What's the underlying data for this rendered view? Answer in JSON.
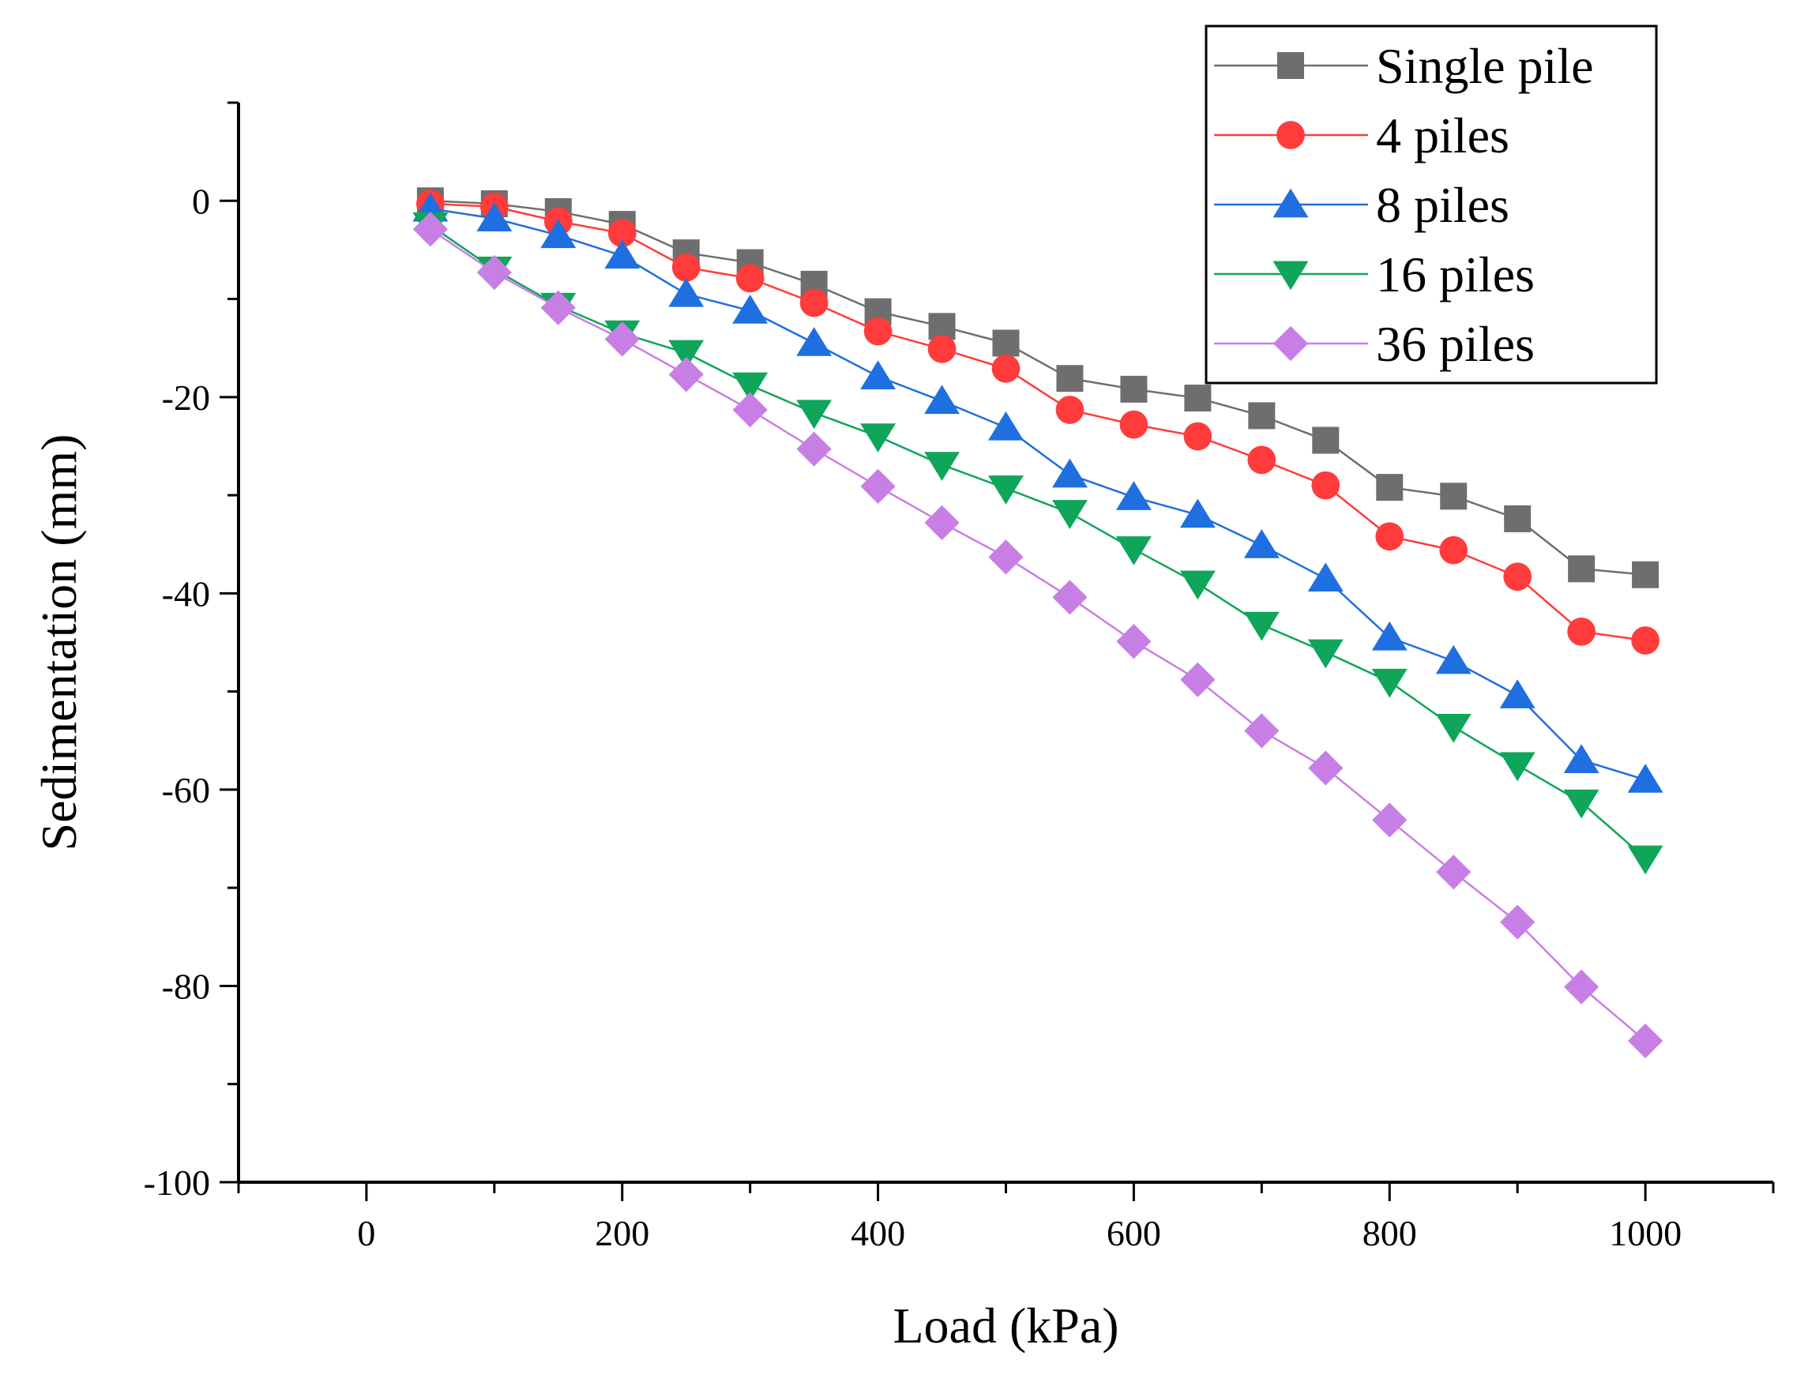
{
  "chart_data": {
    "type": "line",
    "title": "",
    "xlabel": "Load (kPa)",
    "ylabel": "Sedimentation (mm)",
    "xlim": [
      -100,
      1100
    ],
    "ylim": [
      -100,
      10
    ],
    "xticks": [
      0,
      200,
      400,
      600,
      800,
      1000
    ],
    "yticks": [
      0,
      -20,
      -40,
      -60,
      -80,
      -100
    ],
    "grid": false,
    "legend_position": "top-right",
    "x": [
      50,
      100,
      150,
      200,
      250,
      300,
      350,
      400,
      450,
      500,
      550,
      600,
      650,
      700,
      750,
      800,
      850,
      900,
      950,
      1000
    ],
    "series": [
      {
        "name": "Single pile",
        "marker": "square",
        "color": "#6e6e6e",
        "values": [
          0,
          -0.3,
          -1.1,
          -2.4,
          -5.3,
          -6.3,
          -8.5,
          -11.3,
          -12.8,
          -14.5,
          -18.1,
          -19.2,
          -20.1,
          -21.9,
          -24.4,
          -29.2,
          -30.1,
          -32.4,
          -37.5,
          -38.1
        ]
      },
      {
        "name": "4 piles",
        "marker": "circle",
        "color": "#ff3b3b",
        "values": [
          -0.3,
          -0.6,
          -2.1,
          -3.3,
          -6.8,
          -7.9,
          -10.4,
          -13.3,
          -15.1,
          -17.1,
          -21.3,
          -22.8,
          -24.0,
          -26.4,
          -29.0,
          -34.2,
          -35.6,
          -38.3,
          -43.9,
          -44.8
        ]
      },
      {
        "name": "8 piles",
        "marker": "triangle-up",
        "color": "#1f6fe0",
        "values": [
          -0.8,
          -1.8,
          -3.5,
          -5.6,
          -9.5,
          -11.2,
          -14.5,
          -17.9,
          -20.4,
          -23.1,
          -27.9,
          -30.2,
          -32.0,
          -35.1,
          -38.5,
          -44.5,
          -46.9,
          -50.4,
          -57.0,
          -59.0
        ]
      },
      {
        "name": "16 piles",
        "marker": "triangle-down",
        "color": "#0fa55a",
        "values": [
          -2.5,
          -7.0,
          -10.7,
          -13.5,
          -15.5,
          -18.8,
          -21.6,
          -24.0,
          -26.9,
          -29.3,
          -31.8,
          -35.5,
          -39.0,
          -43.2,
          -46.0,
          -49.0,
          -53.6,
          -57.5,
          -61.3,
          -67.0
        ]
      },
      {
        "name": "36 piles",
        "marker": "diamond",
        "color": "#c77fe6",
        "values": [
          -2.9,
          -7.3,
          -10.9,
          -14.1,
          -17.7,
          -21.3,
          -25.3,
          -29.1,
          -32.8,
          -36.3,
          -40.4,
          -44.9,
          -48.8,
          -54.0,
          -57.8,
          -63.1,
          -68.4,
          -73.5,
          -80.1,
          -85.6
        ]
      }
    ]
  }
}
